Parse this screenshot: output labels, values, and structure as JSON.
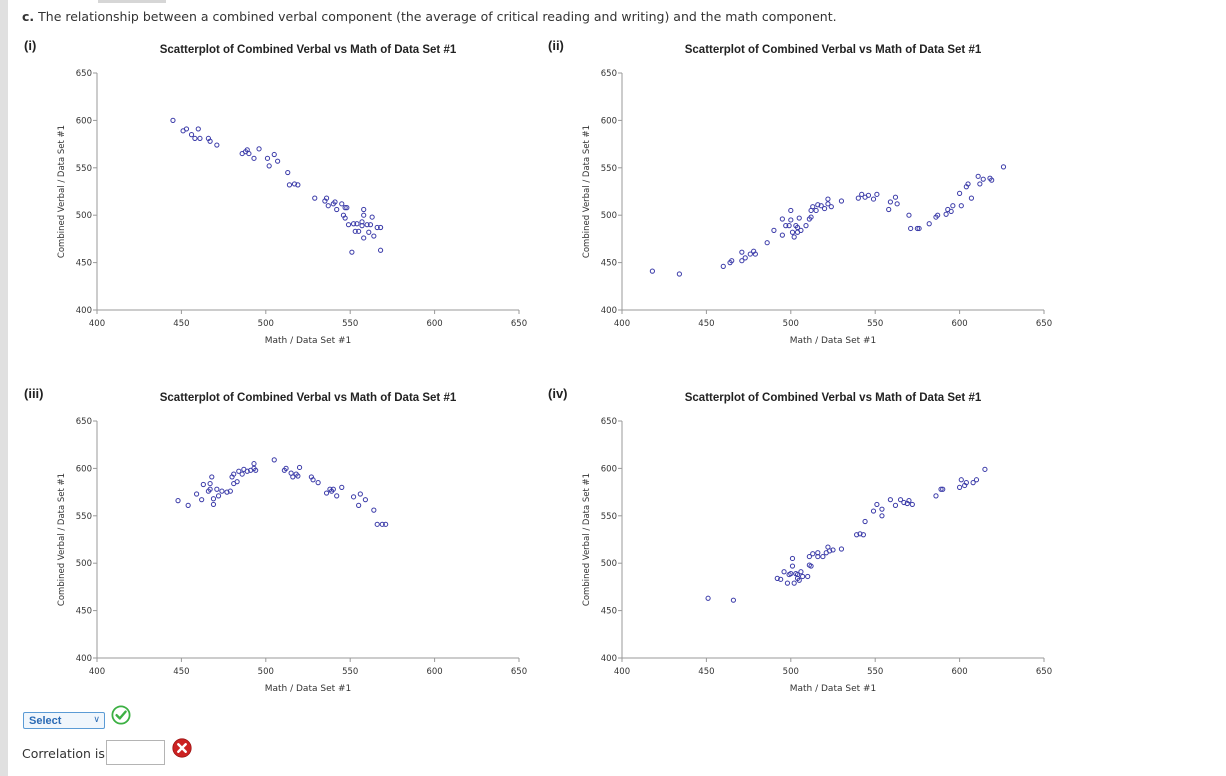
{
  "question": {
    "part": "c.",
    "text": "The relationship between a combined verbal component (the average of critical reading and writing) and the math component."
  },
  "panels": [
    {
      "label": "(i)"
    },
    {
      "label": "(ii)"
    },
    {
      "label": "(iii)"
    },
    {
      "label": "(iv)"
    }
  ],
  "chart_data": [
    {
      "type": "scatter",
      "title": "Scatterplot of Combined Verbal vs Math of Data Set #1",
      "xlabel": "Math / Data Set #1",
      "ylabel": "Combined Verbal / Data Set #1",
      "xlim": [
        400,
        650
      ],
      "ylim": [
        400,
        650
      ],
      "xticks": [
        400,
        450,
        500,
        550,
        600,
        650
      ],
      "yticks": [
        400,
        450,
        500,
        550,
        600,
        650
      ],
      "marker_color": "#3a3aa8",
      "points": [
        [
          445,
          600
        ],
        [
          451,
          589
        ],
        [
          453,
          591
        ],
        [
          456,
          585
        ],
        [
          458,
          581
        ],
        [
          460,
          591
        ],
        [
          461,
          581
        ],
        [
          466,
          581
        ],
        [
          467,
          578
        ],
        [
          471,
          574
        ],
        [
          486,
          565
        ],
        [
          488,
          567
        ],
        [
          489,
          569
        ],
        [
          490,
          565
        ],
        [
          493,
          560
        ],
        [
          496,
          570
        ],
        [
          501,
          560
        ],
        [
          502,
          552
        ],
        [
          505,
          564
        ],
        [
          507,
          557
        ],
        [
          513,
          545
        ],
        [
          514,
          532
        ],
        [
          517,
          533
        ],
        [
          519,
          532
        ],
        [
          529,
          518
        ],
        [
          535,
          515
        ],
        [
          536,
          518
        ],
        [
          537,
          510
        ],
        [
          540,
          512
        ],
        [
          541,
          514
        ],
        [
          542,
          506
        ],
        [
          545,
          512
        ],
        [
          546,
          500
        ],
        [
          547,
          497
        ],
        [
          547,
          508
        ],
        [
          548,
          508
        ],
        [
          549,
          490
        ],
        [
          551,
          461
        ],
        [
          552,
          491
        ],
        [
          553,
          483
        ],
        [
          554,
          491
        ],
        [
          555,
          483
        ],
        [
          557,
          493
        ],
        [
          557,
          489
        ],
        [
          558,
          476
        ],
        [
          558,
          500
        ],
        [
          558,
          506
        ],
        [
          560,
          490
        ],
        [
          561,
          482
        ],
        [
          562,
          490
        ],
        [
          563,
          498
        ],
        [
          564,
          478
        ],
        [
          566,
          487
        ],
        [
          568,
          463
        ],
        [
          568,
          487
        ]
      ]
    },
    {
      "type": "scatter",
      "title": "Scatterplot of Combined Verbal vs Math of Data Set #1",
      "xlabel": "Math / Data Set #1",
      "ylabel": "Combined Verbal / Data Set #1",
      "xlim": [
        400,
        650
      ],
      "ylim": [
        400,
        650
      ],
      "xticks": [
        400,
        450,
        500,
        550,
        600,
        650
      ],
      "yticks": [
        400,
        450,
        500,
        550,
        600,
        650
      ],
      "marker_color": "#3a3aa8",
      "points": [
        [
          418,
          441
        ],
        [
          434,
          438
        ],
        [
          460,
          446
        ],
        [
          464,
          450
        ],
        [
          465,
          452
        ],
        [
          471,
          461
        ],
        [
          471,
          452
        ],
        [
          473,
          455
        ],
        [
          476,
          459
        ],
        [
          478,
          462
        ],
        [
          479,
          459
        ],
        [
          486,
          471
        ],
        [
          490,
          484
        ],
        [
          495,
          479
        ],
        [
          495,
          496
        ],
        [
          497,
          489
        ],
        [
          499,
          489
        ],
        [
          500,
          505
        ],
        [
          500,
          495
        ],
        [
          501,
          482
        ],
        [
          502,
          477
        ],
        [
          503,
          489
        ],
        [
          504,
          487
        ],
        [
          504,
          482
        ],
        [
          505,
          497
        ],
        [
          506,
          484
        ],
        [
          509,
          489
        ],
        [
          511,
          496
        ],
        [
          512,
          498
        ],
        [
          512,
          505
        ],
        [
          513,
          509
        ],
        [
          515,
          505
        ],
        [
          516,
          511
        ],
        [
          518,
          510
        ],
        [
          520,
          507
        ],
        [
          522,
          512
        ],
        [
          522,
          517
        ],
        [
          524,
          509
        ],
        [
          530,
          515
        ],
        [
          540,
          518
        ],
        [
          542,
          522
        ],
        [
          544,
          519
        ],
        [
          546,
          521
        ],
        [
          549,
          517
        ],
        [
          551,
          522
        ],
        [
          558,
          506
        ],
        [
          559,
          514
        ],
        [
          562,
          519
        ],
        [
          563,
          512
        ],
        [
          570,
          500
        ],
        [
          571,
          486
        ],
        [
          575,
          486
        ],
        [
          576,
          486
        ],
        [
          582,
          491
        ],
        [
          586,
          498
        ],
        [
          587,
          500
        ],
        [
          592,
          501
        ],
        [
          593,
          506
        ],
        [
          595,
          504
        ],
        [
          596,
          510
        ],
        [
          600,
          523
        ],
        [
          601,
          510
        ],
        [
          604,
          530
        ],
        [
          605,
          533
        ],
        [
          607,
          518
        ],
        [
          611,
          541
        ],
        [
          612,
          533
        ],
        [
          614,
          538
        ],
        [
          618,
          539
        ],
        [
          619,
          537
        ],
        [
          626,
          551
        ]
      ]
    },
    {
      "type": "scatter",
      "title": "Scatterplot of Combined Verbal vs Math of Data Set #1",
      "xlabel": "Math / Data Set #1",
      "ylabel": "Combined Verbal / Data Set #1",
      "xlim": [
        400,
        650
      ],
      "ylim": [
        400,
        650
      ],
      "xticks": [
        400,
        450,
        500,
        550,
        600,
        650
      ],
      "yticks": [
        400,
        450,
        500,
        550,
        600,
        650
      ],
      "marker_color": "#3a3aa8",
      "points": [
        [
          448,
          566
        ],
        [
          454,
          561
        ],
        [
          459,
          573
        ],
        [
          462,
          567
        ],
        [
          463,
          583
        ],
        [
          466,
          576
        ],
        [
          467,
          578
        ],
        [
          467,
          584
        ],
        [
          468,
          591
        ],
        [
          469,
          568
        ],
        [
          469,
          562
        ],
        [
          471,
          578
        ],
        [
          472,
          571
        ],
        [
          474,
          576
        ],
        [
          477,
          575
        ],
        [
          479,
          576
        ],
        [
          480,
          591
        ],
        [
          481,
          594
        ],
        [
          481,
          584
        ],
        [
          483,
          586
        ],
        [
          484,
          597
        ],
        [
          486,
          594
        ],
        [
          487,
          599
        ],
        [
          489,
          597
        ],
        [
          491,
          598
        ],
        [
          493,
          605
        ],
        [
          493,
          600
        ],
        [
          494,
          598
        ],
        [
          505,
          609
        ],
        [
          511,
          598
        ],
        [
          512,
          600
        ],
        [
          515,
          595
        ],
        [
          516,
          591
        ],
        [
          518,
          594
        ],
        [
          519,
          592
        ],
        [
          520,
          601
        ],
        [
          527,
          591
        ],
        [
          528,
          588
        ],
        [
          531,
          585
        ],
        [
          536,
          574
        ],
        [
          538,
          578
        ],
        [
          539,
          576
        ],
        [
          540,
          578
        ],
        [
          542,
          571
        ],
        [
          545,
          580
        ],
        [
          552,
          570
        ],
        [
          555,
          561
        ],
        [
          556,
          573
        ],
        [
          559,
          567
        ],
        [
          564,
          556
        ],
        [
          566,
          541
        ],
        [
          569,
          541
        ],
        [
          571,
          541
        ]
      ]
    },
    {
      "type": "scatter",
      "title": "Scatterplot of Combined Verbal vs Math of Data Set #1",
      "xlabel": "Math / Data Set #1",
      "ylabel": "Combined Verbal / Data Set #1",
      "xlim": [
        400,
        650
      ],
      "ylim": [
        400,
        650
      ],
      "xticks": [
        400,
        450,
        500,
        550,
        600,
        650
      ],
      "yticks": [
        400,
        450,
        500,
        550,
        600,
        650
      ],
      "marker_color": "#3a3aa8",
      "points": [
        [
          451,
          463
        ],
        [
          466,
          461
        ],
        [
          492,
          484
        ],
        [
          494,
          483
        ],
        [
          496,
          491
        ],
        [
          498,
          479
        ],
        [
          499,
          488
        ],
        [
          500,
          489
        ],
        [
          501,
          505
        ],
        [
          501,
          497
        ],
        [
          502,
          479
        ],
        [
          503,
          489
        ],
        [
          504,
          484
        ],
        [
          504,
          488
        ],
        [
          505,
          482
        ],
        [
          506,
          491
        ],
        [
          507,
          486
        ],
        [
          510,
          486
        ],
        [
          511,
          498
        ],
        [
          511,
          507
        ],
        [
          512,
          497
        ],
        [
          513,
          510
        ],
        [
          516,
          511
        ],
        [
          516,
          507
        ],
        [
          519,
          507
        ],
        [
          521,
          511
        ],
        [
          522,
          517
        ],
        [
          523,
          513
        ],
        [
          525,
          514
        ],
        [
          530,
          515
        ],
        [
          539,
          530
        ],
        [
          541,
          531
        ],
        [
          543,
          530
        ],
        [
          544,
          544
        ],
        [
          549,
          555
        ],
        [
          551,
          562
        ],
        [
          554,
          557
        ],
        [
          554,
          550
        ],
        [
          559,
          567
        ],
        [
          562,
          561
        ],
        [
          565,
          567
        ],
        [
          567,
          564
        ],
        [
          569,
          563
        ],
        [
          570,
          566
        ],
        [
          572,
          562
        ],
        [
          586,
          571
        ],
        [
          589,
          578
        ],
        [
          590,
          578
        ],
        [
          600,
          580
        ],
        [
          601,
          588
        ],
        [
          603,
          582
        ],
        [
          604,
          585
        ],
        [
          608,
          585
        ],
        [
          610,
          588
        ],
        [
          615,
          599
        ]
      ]
    }
  ],
  "select": {
    "value": "Select"
  },
  "correlation": {
    "label": "Correlation is",
    "value": ""
  },
  "colors": {
    "marker": "#3a3aa8",
    "link": "#2b6bb5",
    "check": "#3cb043",
    "cross": "#cc2222"
  }
}
